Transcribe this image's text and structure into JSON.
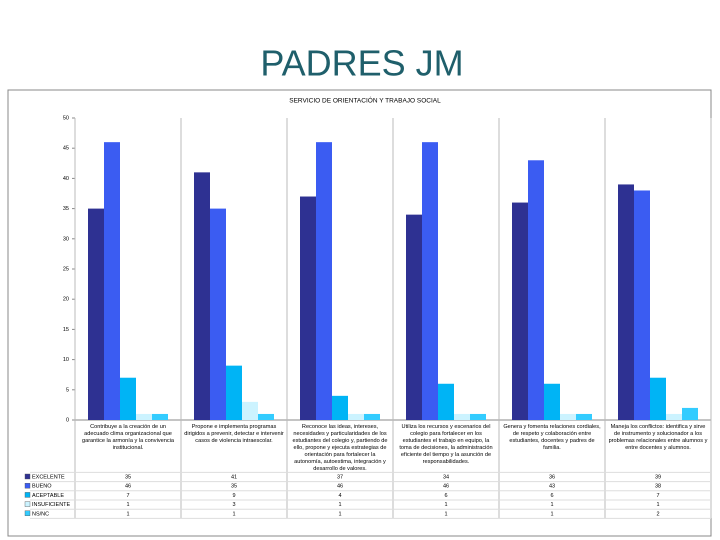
{
  "header": {
    "title": "PADRES JM"
  },
  "chart_data": {
    "type": "bar",
    "title": "SERVICIO DE ORIENTACIÓN Y TRABAJO SOCIAL",
    "categories": [
      "Contribuye a la creación de un adecuado clima organizacional que garantice la armonía y la convivencia institucional.",
      "Propone e implementa programas dirigidos a prevenir, detectar e intervenir casos de violencia intraescolar.",
      "Reconoce las ideas, intereses, necesidades y particularidades de los estudiantes del colegio y, partiendo de ello, propone y ejecuta estrategias de orientación para fortalecer la autonomía, autoestima, integración y desarrollo de valores.",
      "Utiliza los recursos y escenarios del colegio para fortalecer en los estudiantes el trabajo en equipo, la toma de decisiones, la administración eficiente del tiempo y la asunción de responsabilidades.",
      "Genera y fomenta relaciones cordiales, de respeto y colaboración entre estudiantes, docentes y padres de familia.",
      "Maneja los conflictos: identifica y sirve de instrumento y solucionador a los problemas relacionales entre alumnos y entre docentes y alumnos."
    ],
    "series": [
      {
        "name": "EXCELENTE",
        "color": "#2e3192",
        "values": [
          35,
          41,
          37,
          34,
          36,
          39
        ]
      },
      {
        "name": "BUENO",
        "color": "#3b5cf2",
        "values": [
          46,
          35,
          46,
          46,
          43,
          38
        ]
      },
      {
        "name": "ACEPTABLE",
        "color": "#00b4f5",
        "values": [
          7,
          9,
          4,
          6,
          6,
          7
        ]
      },
      {
        "name": "INSUFICIENTE",
        "color": "#ccf3ff",
        "values": [
          1,
          3,
          1,
          1,
          1,
          1
        ]
      },
      {
        "name": "NS/NC",
        "color": "#33ccff",
        "values": [
          1,
          1,
          1,
          1,
          1,
          2
        ]
      }
    ],
    "ylim": [
      0,
      50
    ],
    "yticks": [
      0,
      5,
      10,
      15,
      20,
      25,
      30,
      35,
      40,
      45,
      50
    ],
    "grid": false
  }
}
